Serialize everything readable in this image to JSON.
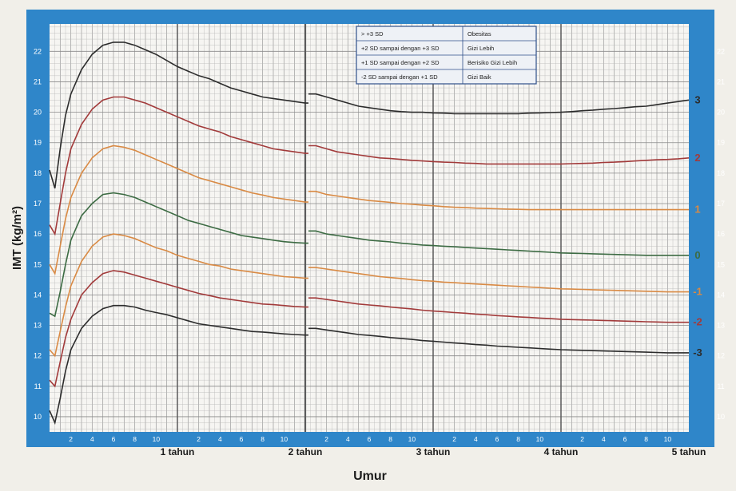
{
  "chart_data": {
    "type": "line",
    "title": "",
    "xlabel": "Umur",
    "ylabel": "IMT (kg/m²)",
    "ylim": [
      9.5,
      22.9
    ],
    "xlim": [
      0,
      60
    ],
    "grid": true,
    "y_ticks": [
      10,
      11,
      12,
      13,
      14,
      15,
      16,
      17,
      18,
      19,
      20,
      21,
      22
    ],
    "month_ticks": [
      {
        "m": 2,
        "label": "2"
      },
      {
        "m": 4,
        "label": "4"
      },
      {
        "m": 6,
        "label": "6"
      },
      {
        "m": 8,
        "label": "8"
      },
      {
        "m": 10,
        "label": "10"
      },
      {
        "m": 14,
        "label": "2"
      },
      {
        "m": 16,
        "label": "4"
      },
      {
        "m": 18,
        "label": "6"
      },
      {
        "m": 20,
        "label": "8"
      },
      {
        "m": 22,
        "label": "10"
      },
      {
        "m": 26,
        "label": "2"
      },
      {
        "m": 28,
        "label": "4"
      },
      {
        "m": 30,
        "label": "6"
      },
      {
        "m": 32,
        "label": "8"
      },
      {
        "m": 34,
        "label": "10"
      },
      {
        "m": 38,
        "label": "2"
      },
      {
        "m": 40,
        "label": "4"
      },
      {
        "m": 42,
        "label": "6"
      },
      {
        "m": 44,
        "label": "8"
      },
      {
        "m": 46,
        "label": "10"
      },
      {
        "m": 50,
        "label": "2"
      },
      {
        "m": 52,
        "label": "4"
      },
      {
        "m": 54,
        "label": "6"
      },
      {
        "m": 56,
        "label": "8"
      },
      {
        "m": 58,
        "label": "10"
      }
    ],
    "year_labels": [
      {
        "m": 12,
        "label": "1 tahun"
      },
      {
        "m": 24,
        "label": "2 tahun"
      },
      {
        "m": 36,
        "label": "3 tahun"
      },
      {
        "m": 48,
        "label": "4 tahun"
      },
      {
        "m": 60,
        "label": "5 tahun"
      }
    ],
    "series": [
      {
        "name": "3",
        "color": "#2c2c2c",
        "x": [
          0,
          0.5,
          1,
          1.5,
          2,
          3,
          4,
          5,
          6,
          7,
          8,
          9,
          10,
          11,
          12,
          13,
          14,
          15,
          16,
          17,
          18,
          19,
          20,
          21,
          22,
          23,
          24,
          25,
          26,
          27,
          28,
          29,
          30,
          31,
          32,
          33,
          34,
          35,
          36,
          37,
          38,
          39,
          40,
          41,
          42,
          43,
          44,
          45,
          46,
          47,
          48,
          49,
          50,
          51,
          52,
          53,
          54,
          55,
          56,
          57,
          58,
          59,
          60
        ],
        "y": [
          18.1,
          17.5,
          18.8,
          19.9,
          20.6,
          21.4,
          21.9,
          22.2,
          22.3,
          22.3,
          22.2,
          22.05,
          21.9,
          21.7,
          21.5,
          21.35,
          21.2,
          21.1,
          20.95,
          20.8,
          20.7,
          20.6,
          20.5,
          20.45,
          20.4,
          20.35,
          20.3,
          20.6,
          20.5,
          20.4,
          20.3,
          20.2,
          20.15,
          20.1,
          20.05,
          20.02,
          20.0,
          20.0,
          19.98,
          19.97,
          19.95,
          19.95,
          19.95,
          19.95,
          19.95,
          19.95,
          19.95,
          19.97,
          19.98,
          19.99,
          20.0,
          20.02,
          20.05,
          20.07,
          20.1,
          20.12,
          20.15,
          20.18,
          20.2,
          20.25,
          20.3,
          20.35,
          20.4
        ]
      },
      {
        "name": "2",
        "color": "#a23a3a",
        "x": [
          0,
          0.5,
          1,
          1.5,
          2,
          3,
          4,
          5,
          6,
          7,
          8,
          9,
          10,
          11,
          12,
          13,
          14,
          15,
          16,
          17,
          18,
          19,
          20,
          21,
          22,
          23,
          24,
          25,
          26,
          27,
          28,
          29,
          30,
          31,
          32,
          33,
          34,
          35,
          36,
          37,
          38,
          39,
          40,
          41,
          42,
          43,
          44,
          45,
          46,
          47,
          48,
          49,
          50,
          51,
          52,
          53,
          54,
          55,
          56,
          57,
          58,
          59,
          60
        ],
        "y": [
          16.3,
          16.0,
          17.0,
          18.0,
          18.8,
          19.6,
          20.1,
          20.4,
          20.5,
          20.5,
          20.4,
          20.3,
          20.15,
          20.0,
          19.85,
          19.7,
          19.55,
          19.45,
          19.35,
          19.2,
          19.1,
          19.0,
          18.9,
          18.8,
          18.75,
          18.7,
          18.65,
          18.9,
          18.8,
          18.7,
          18.65,
          18.6,
          18.55,
          18.5,
          18.48,
          18.45,
          18.42,
          18.4,
          18.38,
          18.36,
          18.35,
          18.33,
          18.32,
          18.3,
          18.3,
          18.3,
          18.3,
          18.3,
          18.3,
          18.3,
          18.3,
          18.31,
          18.32,
          18.33,
          18.35,
          18.36,
          18.38,
          18.4,
          18.42,
          18.44,
          18.45,
          18.47,
          18.5
        ]
      },
      {
        "name": "1",
        "color": "#d98a44",
        "x": [
          0,
          0.5,
          1,
          1.5,
          2,
          3,
          4,
          5,
          6,
          7,
          8,
          9,
          10,
          11,
          12,
          13,
          14,
          15,
          16,
          17,
          18,
          19,
          20,
          21,
          22,
          23,
          24,
          25,
          26,
          27,
          28,
          29,
          30,
          31,
          32,
          33,
          34,
          35,
          36,
          37,
          38,
          39,
          40,
          41,
          42,
          43,
          44,
          45,
          46,
          47,
          48,
          49,
          50,
          51,
          52,
          53,
          54,
          55,
          56,
          57,
          58,
          59,
          60
        ],
        "y": [
          15.0,
          14.7,
          15.6,
          16.5,
          17.2,
          18.0,
          18.5,
          18.8,
          18.9,
          18.85,
          18.75,
          18.6,
          18.45,
          18.3,
          18.15,
          18.0,
          17.85,
          17.75,
          17.65,
          17.55,
          17.45,
          17.35,
          17.28,
          17.2,
          17.15,
          17.1,
          17.05,
          17.4,
          17.3,
          17.25,
          17.2,
          17.15,
          17.1,
          17.07,
          17.04,
          17.0,
          16.98,
          16.95,
          16.93,
          16.9,
          16.88,
          16.87,
          16.85,
          16.84,
          16.83,
          16.82,
          16.81,
          16.8,
          16.8,
          16.8,
          16.8,
          16.8,
          16.8,
          16.8,
          16.8,
          16.8,
          16.8,
          16.8,
          16.8,
          16.8,
          16.8,
          16.8,
          16.8
        ]
      },
      {
        "name": "0",
        "color": "#3c6b43",
        "x": [
          0,
          0.5,
          1,
          1.5,
          2,
          3,
          4,
          5,
          6,
          7,
          8,
          9,
          10,
          11,
          12,
          13,
          14,
          15,
          16,
          17,
          18,
          19,
          20,
          21,
          22,
          23,
          24,
          25,
          26,
          27,
          28,
          29,
          30,
          31,
          32,
          33,
          34,
          35,
          36,
          37,
          38,
          39,
          40,
          41,
          42,
          43,
          44,
          45,
          46,
          47,
          48,
          49,
          50,
          51,
          52,
          53,
          54,
          55,
          56,
          57,
          58,
          59,
          60
        ],
        "y": [
          13.4,
          13.3,
          14.1,
          15.0,
          15.8,
          16.6,
          17.0,
          17.3,
          17.35,
          17.3,
          17.2,
          17.05,
          16.9,
          16.75,
          16.6,
          16.45,
          16.35,
          16.25,
          16.15,
          16.05,
          15.95,
          15.9,
          15.85,
          15.8,
          15.75,
          15.72,
          15.7,
          16.1,
          16.0,
          15.95,
          15.9,
          15.85,
          15.8,
          15.77,
          15.74,
          15.7,
          15.67,
          15.64,
          15.62,
          15.6,
          15.58,
          15.56,
          15.54,
          15.52,
          15.5,
          15.48,
          15.46,
          15.44,
          15.42,
          15.4,
          15.38,
          15.37,
          15.36,
          15.35,
          15.34,
          15.33,
          15.32,
          15.31,
          15.3,
          15.3,
          15.3,
          15.3,
          15.3
        ]
      },
      {
        "name": "-1",
        "color": "#d98a44",
        "x": [
          0,
          0.5,
          1,
          1.5,
          2,
          3,
          4,
          5,
          6,
          7,
          8,
          9,
          10,
          11,
          12,
          13,
          14,
          15,
          16,
          17,
          18,
          19,
          20,
          21,
          22,
          23,
          24,
          25,
          26,
          27,
          28,
          29,
          30,
          31,
          32,
          33,
          34,
          35,
          36,
          37,
          38,
          39,
          40,
          41,
          42,
          43,
          44,
          45,
          46,
          47,
          48,
          49,
          50,
          51,
          52,
          53,
          54,
          55,
          56,
          57,
          58,
          59,
          60
        ],
        "y": [
          12.2,
          12.0,
          12.8,
          13.6,
          14.3,
          15.1,
          15.6,
          15.9,
          16.0,
          15.95,
          15.85,
          15.7,
          15.55,
          15.45,
          15.3,
          15.2,
          15.1,
          15.0,
          14.95,
          14.85,
          14.8,
          14.75,
          14.7,
          14.65,
          14.6,
          14.58,
          14.55,
          14.9,
          14.85,
          14.8,
          14.75,
          14.7,
          14.65,
          14.6,
          14.57,
          14.54,
          14.5,
          14.47,
          14.45,
          14.42,
          14.4,
          14.38,
          14.36,
          14.34,
          14.32,
          14.3,
          14.28,
          14.26,
          14.24,
          14.22,
          14.2,
          14.19,
          14.18,
          14.17,
          14.16,
          14.15,
          14.14,
          14.13,
          14.12,
          14.11,
          14.1,
          14.1,
          14.1
        ]
      },
      {
        "name": "-2",
        "color": "#a23a3a",
        "x": [
          0,
          0.5,
          1,
          1.5,
          2,
          3,
          4,
          5,
          6,
          7,
          8,
          9,
          10,
          11,
          12,
          13,
          14,
          15,
          16,
          17,
          18,
          19,
          20,
          21,
          22,
          23,
          24,
          25,
          26,
          27,
          28,
          29,
          30,
          31,
          32,
          33,
          34,
          35,
          36,
          37,
          38,
          39,
          40,
          41,
          42,
          43,
          44,
          45,
          46,
          47,
          48,
          49,
          50,
          51,
          52,
          53,
          54,
          55,
          56,
          57,
          58,
          59,
          60
        ],
        "y": [
          11.2,
          11.0,
          11.8,
          12.6,
          13.2,
          14.0,
          14.4,
          14.7,
          14.8,
          14.75,
          14.65,
          14.55,
          14.45,
          14.35,
          14.25,
          14.15,
          14.05,
          13.98,
          13.9,
          13.85,
          13.8,
          13.75,
          13.7,
          13.68,
          13.65,
          13.62,
          13.6,
          13.9,
          13.85,
          13.8,
          13.75,
          13.7,
          13.67,
          13.64,
          13.6,
          13.57,
          13.54,
          13.5,
          13.47,
          13.45,
          13.42,
          13.4,
          13.37,
          13.35,
          13.32,
          13.3,
          13.28,
          13.26,
          13.24,
          13.22,
          13.2,
          13.19,
          13.18,
          13.17,
          13.16,
          13.15,
          13.14,
          13.13,
          13.12,
          13.11,
          13.1,
          13.1,
          13.1
        ]
      },
      {
        "name": "-3",
        "color": "#2c2c2c",
        "x": [
          0,
          0.5,
          1,
          1.5,
          2,
          3,
          4,
          5,
          6,
          7,
          8,
          9,
          10,
          11,
          12,
          13,
          14,
          15,
          16,
          17,
          18,
          19,
          20,
          21,
          22,
          23,
          24,
          25,
          26,
          27,
          28,
          29,
          30,
          31,
          32,
          33,
          34,
          35,
          36,
          37,
          38,
          39,
          40,
          41,
          42,
          43,
          44,
          45,
          46,
          47,
          48,
          49,
          50,
          51,
          52,
          53,
          54,
          55,
          56,
          57,
          58,
          59,
          60
        ],
        "y": [
          10.2,
          9.8,
          10.6,
          11.5,
          12.2,
          12.9,
          13.3,
          13.55,
          13.65,
          13.65,
          13.6,
          13.5,
          13.42,
          13.35,
          13.25,
          13.15,
          13.05,
          13.0,
          12.95,
          12.9,
          12.85,
          12.8,
          12.78,
          12.75,
          12.72,
          12.7,
          12.68,
          12.9,
          12.85,
          12.8,
          12.75,
          12.7,
          12.67,
          12.64,
          12.6,
          12.57,
          12.54,
          12.5,
          12.48,
          12.45,
          12.42,
          12.4,
          12.37,
          12.35,
          12.32,
          12.3,
          12.28,
          12.26,
          12.24,
          12.22,
          12.2,
          12.19,
          12.18,
          12.17,
          12.16,
          12.15,
          12.14,
          12.13,
          12.12,
          12.11,
          12.1,
          12.1,
          12.1
        ]
      }
    ],
    "legend": {
      "placement": "top-center",
      "rows": [
        {
          "range": "> +3 SD",
          "status": "Obesitas"
        },
        {
          "range": "+2 SD sampai dengan +3 SD",
          "status": "Gizi Lebih"
        },
        {
          "range": "+1 SD sampai dengan +2 SD",
          "status": "Berisiko Gizi Lebih"
        },
        {
          "range": "-2 SD sampai dengan +1 SD",
          "status": "Gizi Baik"
        }
      ]
    }
  },
  "colors": {
    "frame": "#2f86c9",
    "paper": "#f6f5f2",
    "grid_major": "#5a5a5a",
    "grid_minor": "#b8b8b8"
  }
}
